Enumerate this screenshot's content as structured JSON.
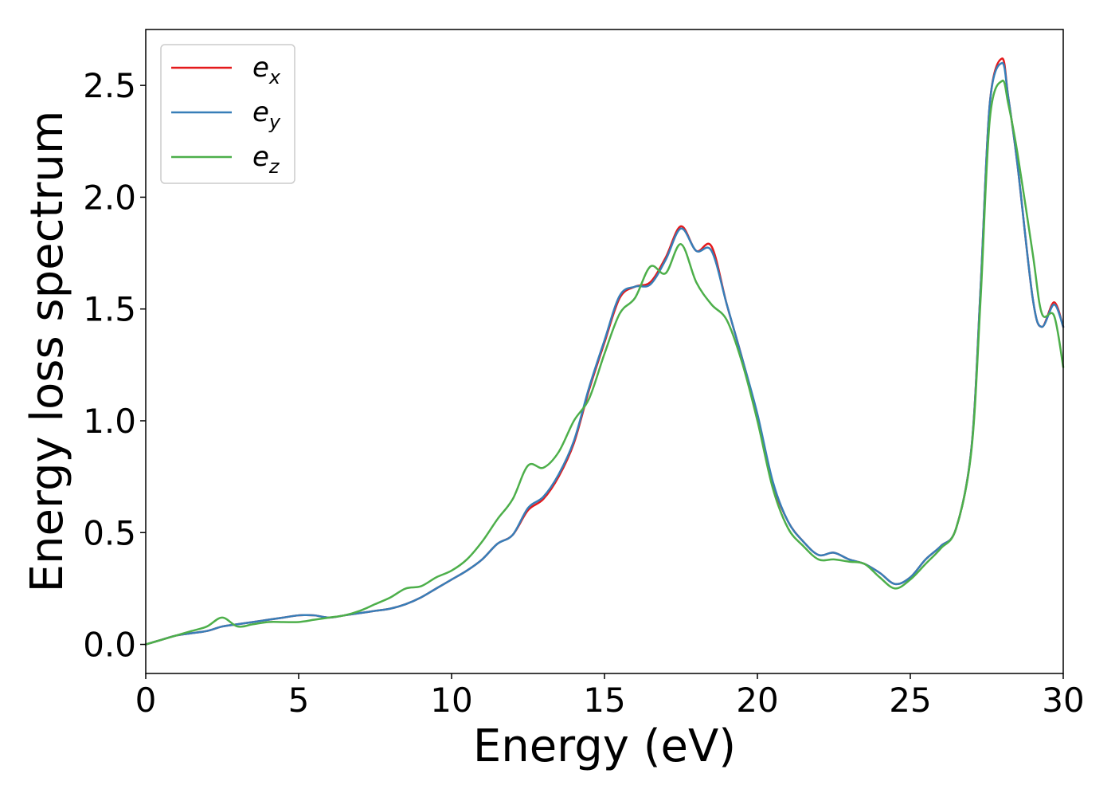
{
  "chart_data": {
    "type": "line",
    "title": "",
    "xlabel": "Energy (eV)",
    "ylabel": "Energy loss spectrum",
    "xlim": [
      0,
      30
    ],
    "ylim": [
      -0.13,
      2.75
    ],
    "xticks": [
      0,
      5,
      10,
      15,
      20,
      25,
      30
    ],
    "xtick_labels": [
      "0",
      "5",
      "10",
      "15",
      "20",
      "25",
      "30"
    ],
    "yticks": [
      0.0,
      0.5,
      1.0,
      1.5,
      2.0,
      2.5
    ],
    "ytick_labels": [
      "0.0",
      "0.5",
      "1.0",
      "1.5",
      "2.0",
      "2.5"
    ],
    "grid": false,
    "legend_position": "top-left",
    "series": [
      {
        "name": "e_x",
        "label_base": "e",
        "label_sub": "x",
        "color": "#e41a1c",
        "x": [
          0,
          0.5,
          1,
          1.5,
          2,
          2.5,
          3,
          3.5,
          4,
          4.5,
          5,
          5.5,
          6,
          6.5,
          7,
          7.5,
          8,
          8.5,
          9,
          9.5,
          10,
          10.5,
          11,
          11.5,
          12,
          12.5,
          13,
          13.5,
          14,
          14.5,
          15,
          15.5,
          16,
          16.5,
          17,
          17.5,
          18,
          18.5,
          19,
          19.5,
          20,
          20.5,
          21,
          21.5,
          22,
          22.5,
          23,
          23.5,
          24,
          24.5,
          25,
          25.5,
          26,
          26.5,
          27,
          27.3,
          27.6,
          28,
          28.2,
          28.5,
          29,
          29.3,
          29.7,
          30
        ],
        "y": [
          0.0,
          0.02,
          0.04,
          0.05,
          0.06,
          0.08,
          0.09,
          0.1,
          0.11,
          0.12,
          0.13,
          0.13,
          0.12,
          0.13,
          0.14,
          0.15,
          0.16,
          0.18,
          0.21,
          0.25,
          0.29,
          0.33,
          0.38,
          0.45,
          0.49,
          0.6,
          0.65,
          0.75,
          0.9,
          1.14,
          1.35,
          1.55,
          1.6,
          1.62,
          1.73,
          1.87,
          1.76,
          1.78,
          1.52,
          1.28,
          1.02,
          0.72,
          0.55,
          0.46,
          0.4,
          0.41,
          0.38,
          0.36,
          0.32,
          0.27,
          0.3,
          0.38,
          0.44,
          0.52,
          0.88,
          1.6,
          2.42,
          2.62,
          2.45,
          2.15,
          1.55,
          1.42,
          1.53,
          1.42
        ]
      },
      {
        "name": "e_y",
        "label_base": "e",
        "label_sub": "y",
        "color": "#377eb8",
        "x": [
          0,
          0.5,
          1,
          1.5,
          2,
          2.5,
          3,
          3.5,
          4,
          4.5,
          5,
          5.5,
          6,
          6.5,
          7,
          7.5,
          8,
          8.5,
          9,
          9.5,
          10,
          10.5,
          11,
          11.5,
          12,
          12.5,
          13,
          13.5,
          14,
          14.5,
          15,
          15.5,
          16,
          16.5,
          17,
          17.5,
          18,
          18.5,
          19,
          19.5,
          20,
          20.5,
          21,
          21.5,
          22,
          22.5,
          23,
          23.5,
          24,
          24.5,
          25,
          25.5,
          26,
          26.5,
          27,
          27.3,
          27.6,
          28,
          28.2,
          28.5,
          29,
          29.3,
          29.7,
          30
        ],
        "y": [
          0.0,
          0.02,
          0.04,
          0.05,
          0.06,
          0.08,
          0.09,
          0.1,
          0.11,
          0.12,
          0.13,
          0.13,
          0.12,
          0.13,
          0.14,
          0.15,
          0.16,
          0.18,
          0.21,
          0.25,
          0.29,
          0.33,
          0.38,
          0.45,
          0.49,
          0.61,
          0.66,
          0.76,
          0.91,
          1.15,
          1.36,
          1.56,
          1.6,
          1.61,
          1.72,
          1.86,
          1.76,
          1.76,
          1.52,
          1.28,
          1.03,
          0.73,
          0.55,
          0.46,
          0.4,
          0.41,
          0.38,
          0.36,
          0.32,
          0.27,
          0.3,
          0.38,
          0.44,
          0.52,
          0.88,
          1.6,
          2.42,
          2.6,
          2.45,
          2.15,
          1.55,
          1.42,
          1.52,
          1.42
        ]
      },
      {
        "name": "e_z",
        "label_base": "e",
        "label_sub": "z",
        "color": "#4daf4a",
        "x": [
          0,
          0.5,
          1,
          1.5,
          2,
          2.5,
          3,
          3.5,
          4,
          4.5,
          5,
          5.5,
          6,
          6.5,
          7,
          7.5,
          8,
          8.5,
          9,
          9.5,
          10,
          10.5,
          11,
          11.5,
          12,
          12.5,
          13,
          13.5,
          14,
          14.5,
          15,
          15.5,
          16,
          16.5,
          17,
          17.5,
          18,
          18.5,
          19,
          19.5,
          20,
          20.5,
          21,
          21.5,
          22,
          22.5,
          23,
          23.5,
          24,
          24.5,
          25,
          25.5,
          26,
          26.5,
          27,
          27.3,
          27.6,
          28,
          28.2,
          28.5,
          29,
          29.3,
          29.7,
          30
        ],
        "y": [
          0.0,
          0.02,
          0.04,
          0.06,
          0.08,
          0.12,
          0.08,
          0.09,
          0.1,
          0.1,
          0.1,
          0.11,
          0.12,
          0.13,
          0.15,
          0.18,
          0.21,
          0.25,
          0.26,
          0.3,
          0.33,
          0.38,
          0.46,
          0.56,
          0.65,
          0.8,
          0.79,
          0.86,
          1.0,
          1.1,
          1.3,
          1.48,
          1.55,
          1.69,
          1.66,
          1.79,
          1.62,
          1.52,
          1.45,
          1.26,
          1.0,
          0.7,
          0.52,
          0.44,
          0.38,
          0.38,
          0.37,
          0.36,
          0.3,
          0.25,
          0.29,
          0.36,
          0.43,
          0.52,
          0.87,
          1.55,
          2.35,
          2.52,
          2.42,
          2.2,
          1.75,
          1.48,
          1.47,
          1.24
        ]
      }
    ]
  }
}
